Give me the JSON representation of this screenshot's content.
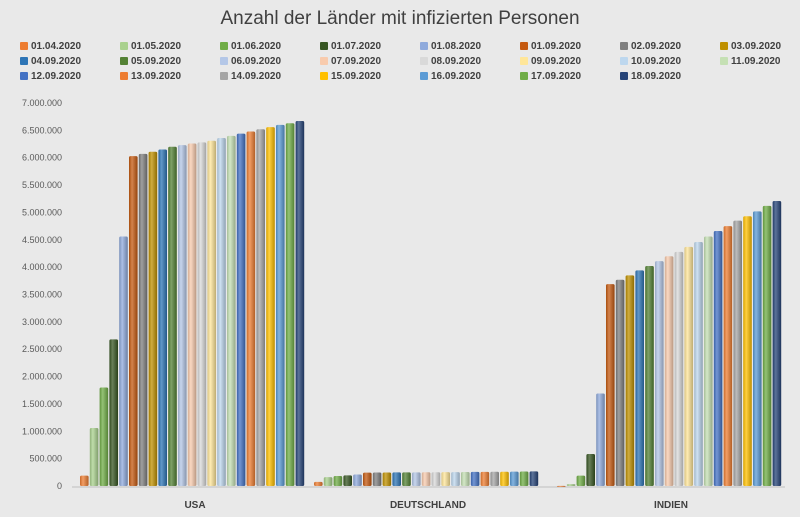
{
  "chart_data": {
    "type": "bar",
    "title": "Anzahl der Länder mit infizierten Personen",
    "xlabel": "",
    "ylabel": "",
    "ylim": [
      0,
      7000000
    ],
    "yticks": [
      "0",
      "500.000",
      "1.000.000",
      "1.500.000",
      "2.000.000",
      "2.500.000",
      "3.000.000",
      "3.500.000",
      "4.000.000",
      "4.500.000",
      "5.000.000",
      "5.500.000",
      "6.000.000",
      "6.500.000",
      "7.000.000"
    ],
    "categories": [
      "USA",
      "DEUTSCHLAND",
      "INDIEN"
    ],
    "grid": false,
    "legend_position": "top",
    "series": [
      {
        "name": "01.04.2020",
        "color": "#ed7d31",
        "values": [
          190000,
          75000,
          1600
        ]
      },
      {
        "name": "01.05.2020",
        "color": "#a9d18e",
        "values": [
          1060000,
          162000,
          35000
        ]
      },
      {
        "name": "01.06.2020",
        "color": "#70ad47",
        "values": [
          1800000,
          183000,
          190000
        ]
      },
      {
        "name": "01.07.2020",
        "color": "#375623",
        "values": [
          2680000,
          195000,
          585000
        ]
      },
      {
        "name": "01.08.2020",
        "color": "#8faadc",
        "values": [
          4560000,
          210000,
          1690000
        ]
      },
      {
        "name": "01.09.2020",
        "color": "#c55a11",
        "values": [
          6030000,
          245000,
          3690000
        ]
      },
      {
        "name": "02.09.2020",
        "color": "#7f7f7f",
        "values": [
          6070000,
          246000,
          3770000
        ]
      },
      {
        "name": "03.09.2020",
        "color": "#bf9000",
        "values": [
          6110000,
          247000,
          3850000
        ]
      },
      {
        "name": "04.09.2020",
        "color": "#2e75b6",
        "values": [
          6150000,
          248000,
          3940000
        ]
      },
      {
        "name": "05.09.2020",
        "color": "#548235",
        "values": [
          6200000,
          249000,
          4020000
        ]
      },
      {
        "name": "06.09.2020",
        "color": "#b4c7e7",
        "values": [
          6230000,
          250000,
          4110000
        ]
      },
      {
        "name": "07.09.2020",
        "color": "#f8cbad",
        "values": [
          6260000,
          251000,
          4200000
        ]
      },
      {
        "name": "08.09.2020",
        "color": "#d9d9d9",
        "values": [
          6280000,
          252000,
          4280000
        ]
      },
      {
        "name": "09.09.2020",
        "color": "#ffe699",
        "values": [
          6310000,
          253000,
          4370000
        ]
      },
      {
        "name": "10.09.2020",
        "color": "#bdd7ee",
        "values": [
          6360000,
          254000,
          4460000
        ]
      },
      {
        "name": "11.09.2020",
        "color": "#c5e0b4",
        "values": [
          6400000,
          256000,
          4560000
        ]
      },
      {
        "name": "12.09.2020",
        "color": "#4472c4",
        "values": [
          6440000,
          258000,
          4660000
        ]
      },
      {
        "name": "13.09.2020",
        "color": "#ed7d31",
        "values": [
          6480000,
          259000,
          4750000
        ]
      },
      {
        "name": "14.09.2020",
        "color": "#a5a5a5",
        "values": [
          6520000,
          260000,
          4850000
        ]
      },
      {
        "name": "15.09.2020",
        "color": "#ffc000",
        "values": [
          6560000,
          261000,
          4930000
        ]
      },
      {
        "name": "16.09.2020",
        "color": "#5b9bd5",
        "values": [
          6600000,
          263000,
          5020000
        ]
      },
      {
        "name": "17.09.2020",
        "color": "#70ad47",
        "values": [
          6630000,
          266000,
          5120000
        ]
      },
      {
        "name": "18.09.2020",
        "color": "#264478",
        "values": [
          6670000,
          268000,
          5210000
        ]
      }
    ]
  }
}
